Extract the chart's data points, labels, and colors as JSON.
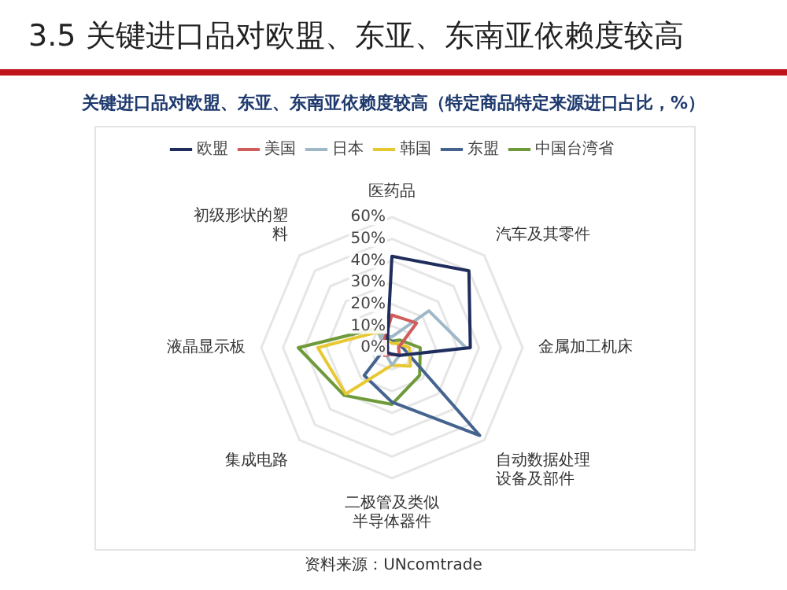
{
  "chart_data": {
    "type": "radar",
    "title": "3.5 关键进口品对欧盟、东亚、东南亚依赖度较高",
    "subtitle": "关键进口品对欧盟、东亚、东南亚依赖度较高（特定商品特定来源进口占比，%）",
    "categories": [
      "医药品",
      "汽车及其零件",
      "金属加工机床",
      "自动数据处理设备及部件",
      "二极管及类似半导体器件",
      "集成电路",
      "液晶显示板",
      "初级形状的塑料"
    ],
    "series": [
      {
        "name": "欧盟",
        "color": "#1f2d5c",
        "values": [
          42,
          50,
          36,
          5,
          3,
          3,
          2,
          3
        ]
      },
      {
        "name": "美国",
        "color": "#d05c5c",
        "values": [
          15,
          16,
          3,
          5,
          3,
          5,
          3,
          5
        ]
      },
      {
        "name": "日本",
        "color": "#9fb8c8",
        "values": [
          5,
          24,
          34,
          5,
          8,
          4,
          3,
          8
        ]
      },
      {
        "name": "韩国",
        "color": "#e8c832",
        "values": [
          2,
          3,
          8,
          12,
          8,
          30,
          34,
          10
        ]
      },
      {
        "name": "东盟",
        "color": "#44648f",
        "values": [
          3,
          3,
          5,
          57,
          25,
          18,
          3,
          5
        ]
      },
      {
        "name": "中国台湾省",
        "color": "#6f9a3a",
        "values": [
          3,
          5,
          13,
          18,
          26,
          31,
          43,
          12
        ]
      }
    ],
    "ylim": [
      0,
      60
    ],
    "yticks": [
      {
        "value": 0,
        "label": "0%"
      },
      {
        "value": 10,
        "label": "10%"
      },
      {
        "value": 20,
        "label": "20%"
      },
      {
        "value": 30,
        "label": "30%"
      },
      {
        "value": 40,
        "label": "40%"
      },
      {
        "value": 50,
        "label": "50%"
      },
      {
        "value": 60,
        "label": "60%"
      }
    ],
    "grid": true,
    "legend": "top",
    "marker": "none",
    "line_style": "solid",
    "annotations": [
      "资料来源：UNcomtrade"
    ]
  }
}
